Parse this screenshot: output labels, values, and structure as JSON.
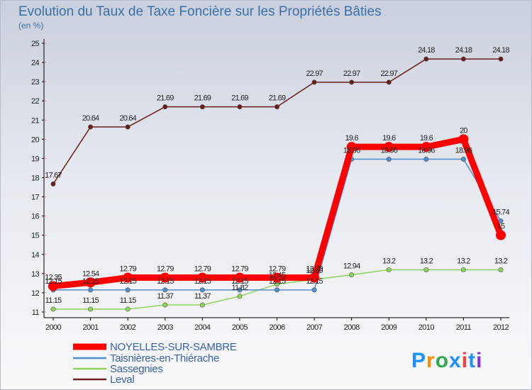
{
  "chart_data": {
    "type": "line",
    "title": "Evolution du Taux de Taxe Foncière sur les Propriétés Bâties",
    "subtitle": "(en %)",
    "xlabel": "",
    "ylabel": "",
    "categories": [
      "2000",
      "2001",
      "2002",
      "2003",
      "2004",
      "2005",
      "2006",
      "2007",
      "2008",
      "2009",
      "2010",
      "2011",
      "2012"
    ],
    "ylim": [
      11,
      25
    ],
    "yticks": [
      11,
      12,
      13,
      14,
      15,
      16,
      17,
      18,
      19,
      20,
      21,
      22,
      23,
      24,
      25
    ],
    "grid": false,
    "legend_position": "bottom-left",
    "series": [
      {
        "name": "NOYELLES-SUR-SAMBRE",
        "color": "#ff0000",
        "values": [
          12.35,
          12.54,
          12.79,
          12.79,
          12.79,
          12.79,
          12.79,
          12.79,
          19.6,
          19.6,
          19.6,
          20,
          15
        ],
        "labels": [
          "12.35",
          "12.54",
          "12.79",
          "12.79",
          "12.79",
          "12.79",
          "12.79",
          "12.79",
          "19.6",
          "19.6",
          "19.6",
          "20",
          "15"
        ]
      },
      {
        "name": "Taisnières-en-Thiérache",
        "color": "#4f8fd0",
        "values": [
          12.15,
          12.15,
          12.15,
          12.15,
          12.15,
          12.15,
          12.15,
          12.15,
          18.96,
          18.96,
          18.96,
          18.96,
          15.74
        ],
        "labels": [
          "12.15",
          "12.15",
          "12.15",
          "12.15",
          "12.15",
          "12.15",
          "12.15",
          "12.15",
          "18.96",
          "18.96",
          "18.96",
          "18.96",
          "15.74"
        ]
      },
      {
        "name": "Sassegnies",
        "color": "#8fd45a",
        "values": [
          11.15,
          11.15,
          11.15,
          11.37,
          11.37,
          11.82,
          12.45,
          12.69,
          12.94,
          13.2,
          13.2,
          13.2,
          13.2
        ],
        "labels": [
          "11.15",
          "11.15",
          "11.15",
          "11.37",
          "11.37",
          "11.82",
          "12.45",
          "12.69",
          "12.94",
          "13.2",
          "13.2",
          "13.2",
          "13.2"
        ]
      },
      {
        "name": "Leval",
        "color": "#6b1d1d",
        "values": [
          17.67,
          20.64,
          20.64,
          21.69,
          21.69,
          21.69,
          21.69,
          22.97,
          22.97,
          22.97,
          24.18,
          24.18,
          24.18
        ],
        "labels": [
          "17.67",
          "20.64",
          "20.64",
          "21.69",
          "21.69",
          "21.69",
          "21.69",
          "22.97",
          "22.97",
          "22.97",
          "24.18",
          "24.18",
          "24.18"
        ]
      }
    ]
  },
  "logo": {
    "text": "Proxiti",
    "letter_colors": [
      "#1e90ff",
      "#ff8c00",
      "#2fa84f",
      "#1e90ff",
      "#ff3a3a",
      "#1e90ff",
      "#8a2be2"
    ]
  }
}
